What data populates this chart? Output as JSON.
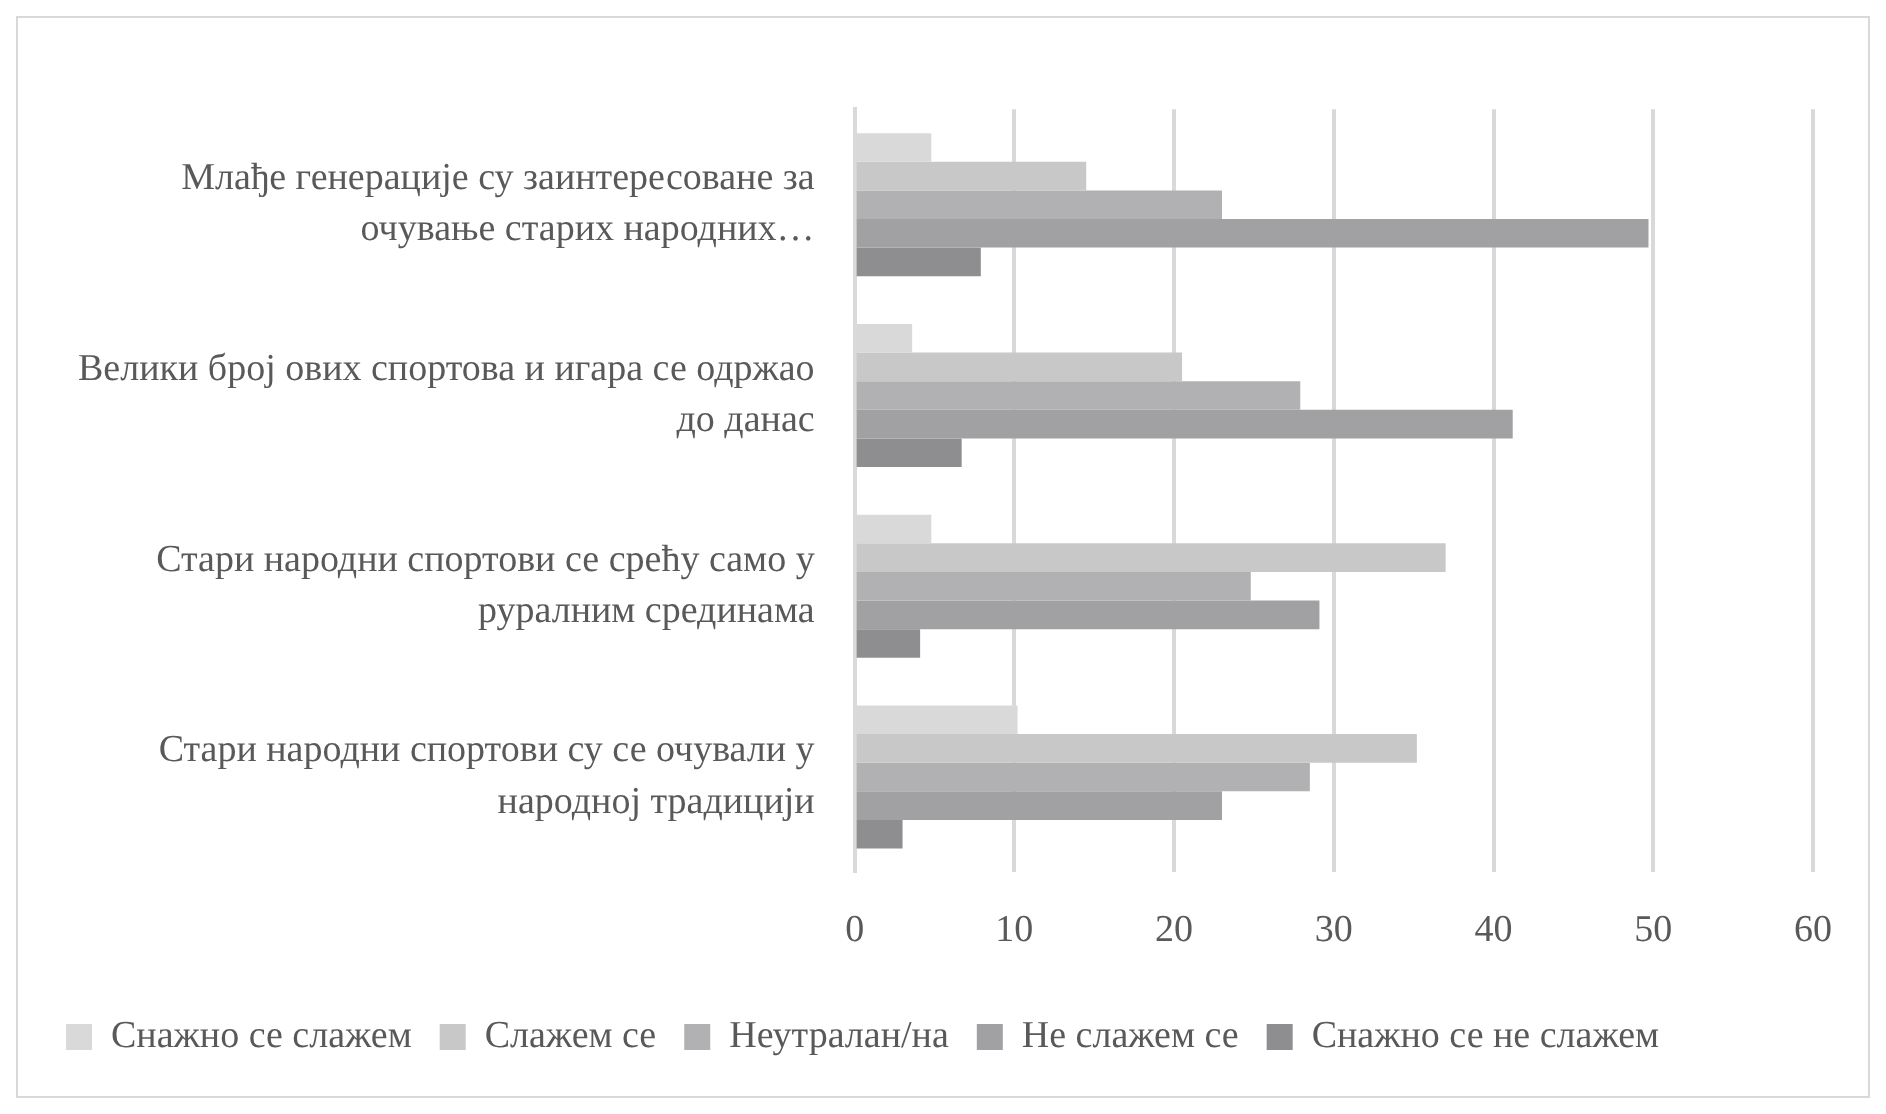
{
  "chart_data": {
    "type": "bar",
    "orientation": "horizontal",
    "categories": [
      "Млађе генерације су заинтересоване за очување старих народних…",
      "Велики број ових спортова и игара се одржао до данас",
      "Стари народни спортови се срећу само у руралним срединама",
      "Стари народни спортови су се очували у народној традицији"
    ],
    "series": [
      {
        "name": "Снажно се слажем",
        "color": "#d9d9d9",
        "values": [
          4.8,
          3.6,
          4.8,
          10.2
        ]
      },
      {
        "name": "Слажем се",
        "color": "#c8c8c9",
        "values": [
          14.5,
          20.5,
          37.0,
          35.2
        ]
      },
      {
        "name": "Неутралан/на",
        "color": "#b1b1b3",
        "values": [
          23.0,
          27.9,
          24.8,
          28.5
        ]
      },
      {
        "name": "Не слажем се",
        "color": "#a1a1a4",
        "values": [
          49.7,
          41.2,
          29.1,
          23.0
        ]
      },
      {
        "name": "Снажно се не слажем",
        "color": "#8e8e91",
        "values": [
          7.9,
          6.7,
          4.1,
          3.0
        ]
      }
    ],
    "xlim": [
      0,
      60
    ],
    "xticks": [
      0,
      10,
      20,
      30,
      40,
      50,
      60
    ],
    "grid": "x",
    "legend": "bottom"
  }
}
